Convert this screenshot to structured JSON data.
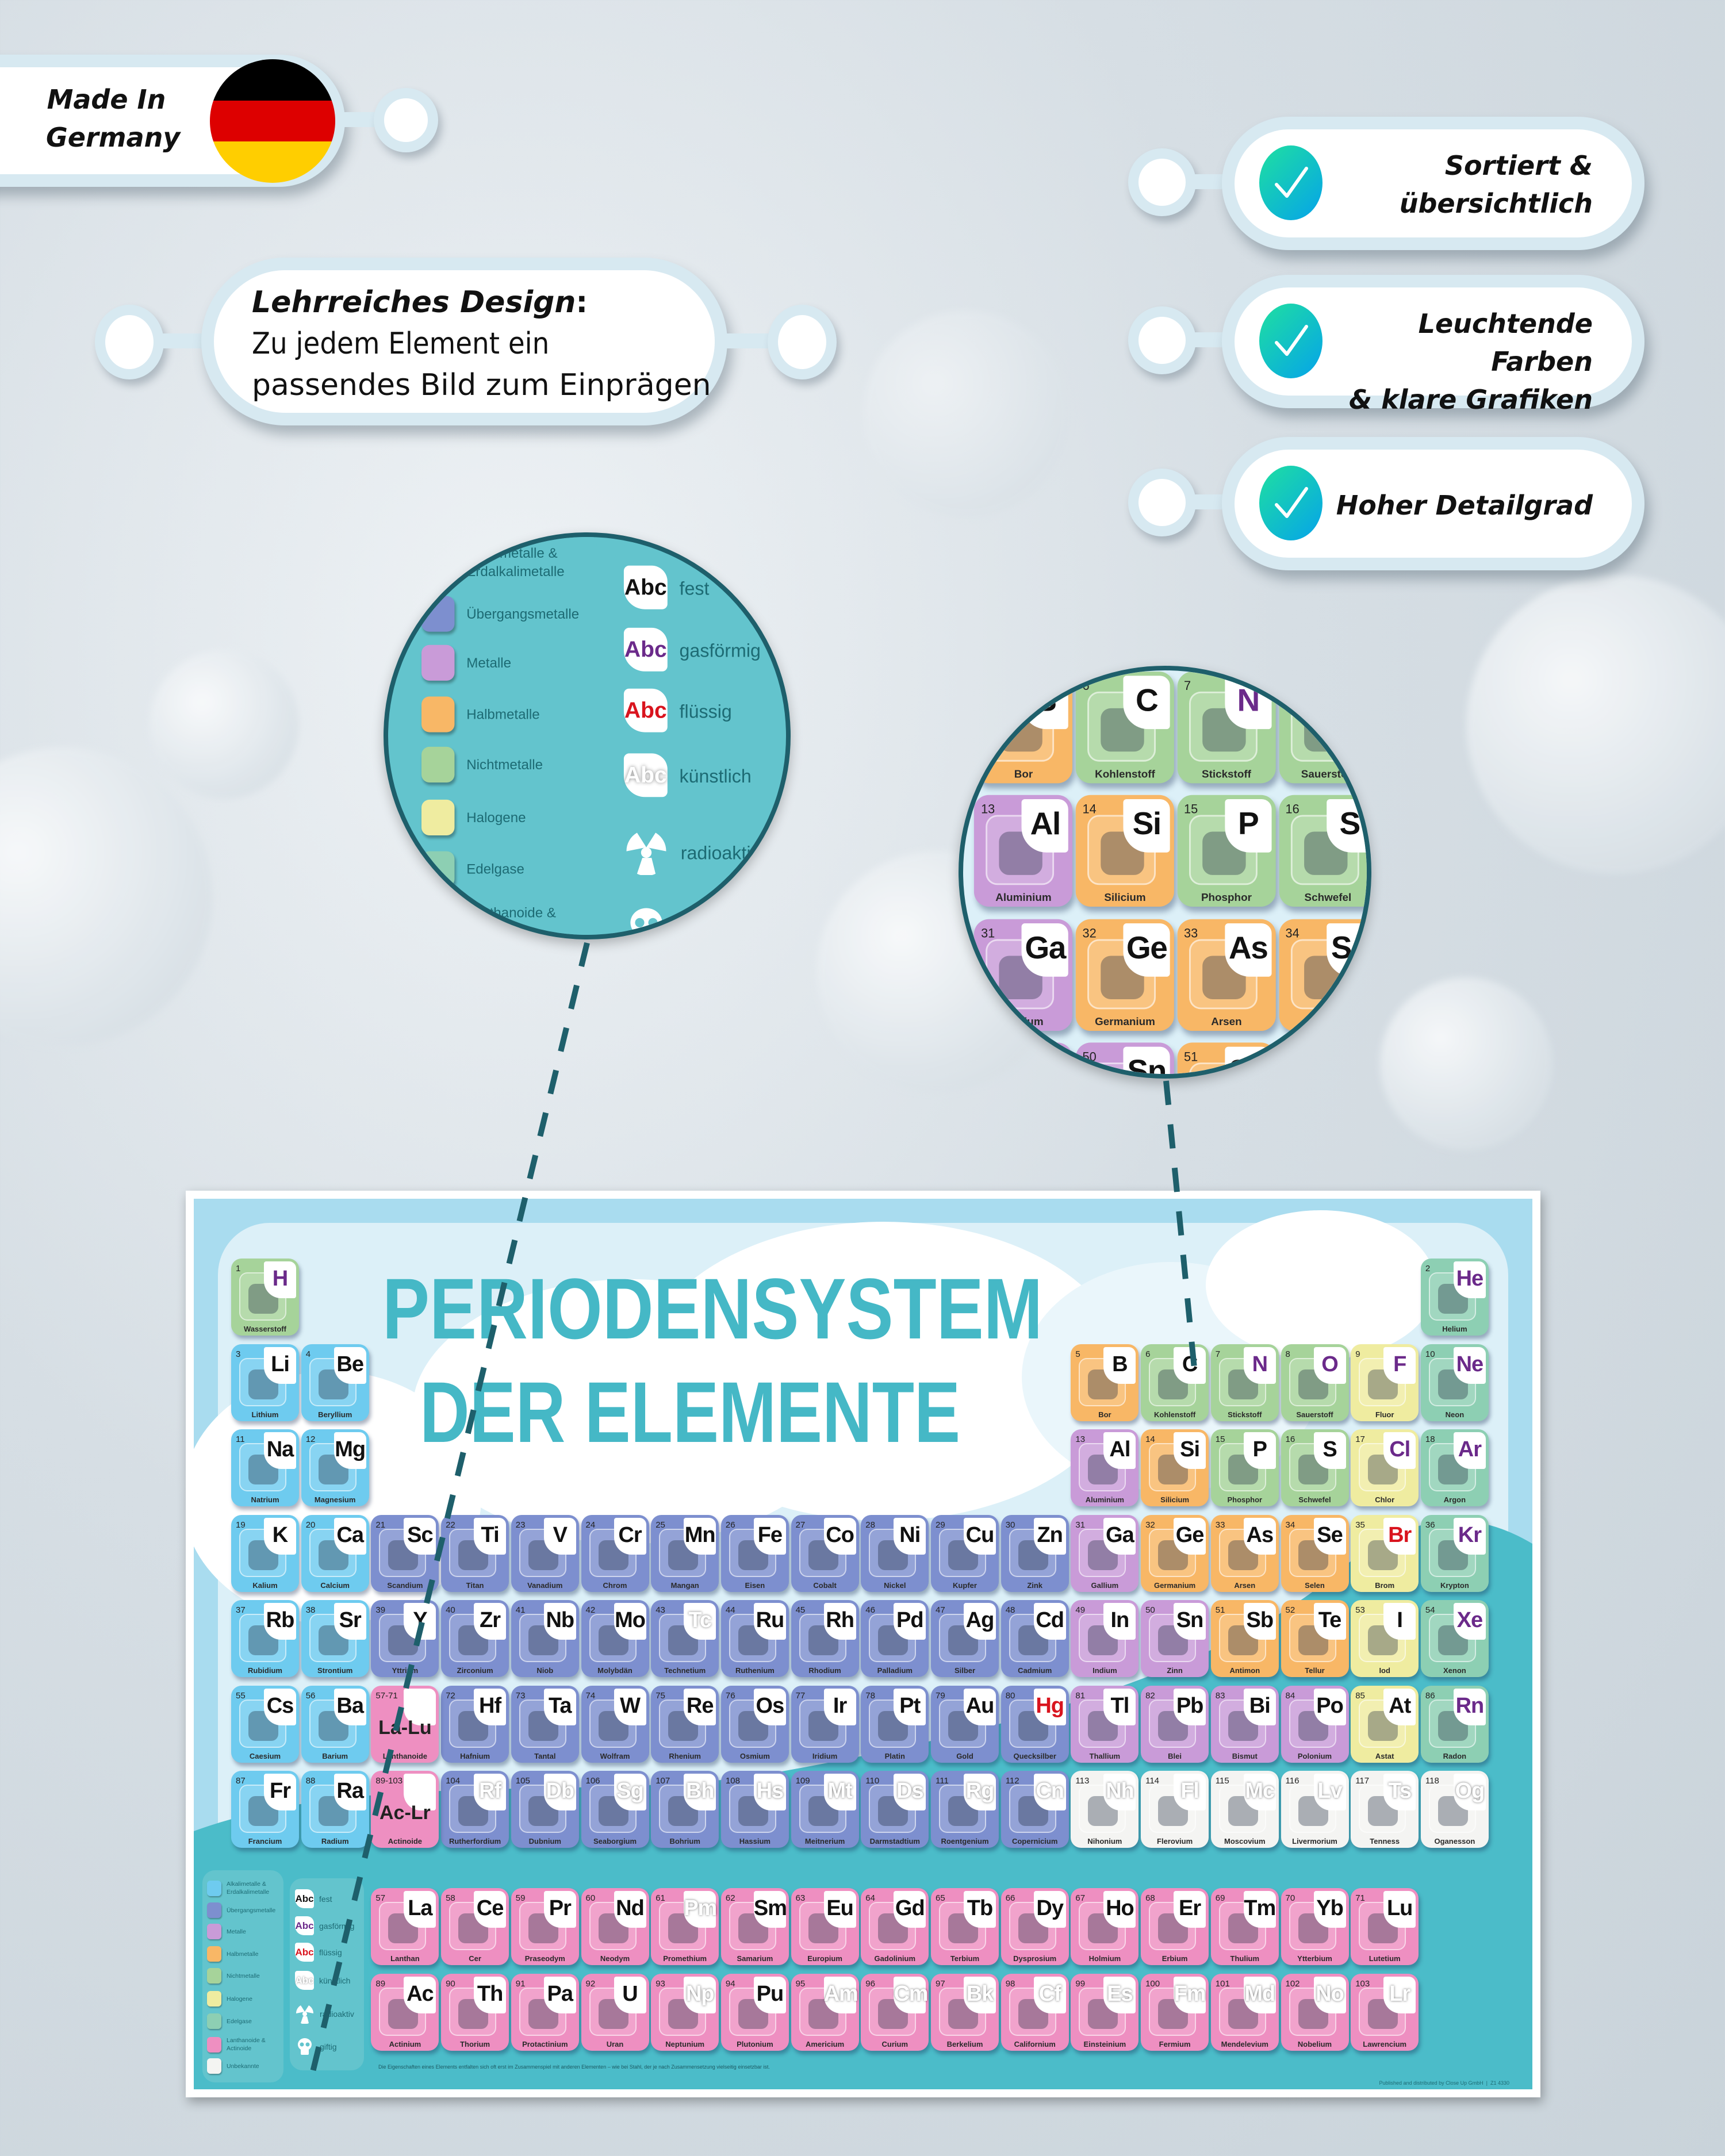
{
  "badge": {
    "made_in": "Made In",
    "country": "Germany",
    "flag_colors": [
      "#000000",
      "#dd0000",
      "#ffce00"
    ]
  },
  "design_callout": {
    "title": "Lehrreiches Design",
    "colon": ":",
    "line1": "Zu jedem Element ein",
    "line2": "passendes Bild zum Einprägen"
  },
  "features": [
    {
      "line1": "Sortiert &",
      "line2": "übersichtlich",
      "icon": "check-icon"
    },
    {
      "line1": "Leuchtende Farben",
      "line2": "& klare Grafiken",
      "icon": "check-icon"
    },
    {
      "line1": "Hoher Detailgrad",
      "line2": "",
      "icon": "check-icon"
    }
  ],
  "poster": {
    "title1": "PERIODENSYSTEM",
    "title2": "DER ELEMENTE",
    "note": "Die Eigenschaften eines Elements entfalten sich oft erst im Zusammenspiel mit anderen Elementen – wie bei Stahl, der je nach Zusammensetzung vielseitig einsetzbar ist.",
    "publisher": "Published and distributed by Close Up GmbH  |  Z1 4330",
    "title_color": "#45b8c6"
  },
  "legend": {
    "categories": [
      {
        "key": "alk",
        "label": "Alkalimetalle &\nErdalkalimetalle",
        "color": "#6ecbef"
      },
      {
        "key": "tm",
        "label": "Übergangsmetalle",
        "color": "#7d8fcf"
      },
      {
        "key": "met",
        "label": "Metalle",
        "color": "#c99bd8"
      },
      {
        "key": "half",
        "label": "Halbmetalle",
        "color": "#f8b766"
      },
      {
        "key": "non",
        "label": "Nichtmetalle",
        "color": "#a6d39a"
      },
      {
        "key": "hal",
        "label": "Halogene",
        "color": "#efeca0"
      },
      {
        "key": "nob",
        "label": "Edelgase",
        "color": "#8dcfb3"
      },
      {
        "key": "lan",
        "label": "Lanthanoide &\nActinoide",
        "color": "#ee8fc1"
      },
      {
        "key": "unk",
        "label": "Unbekannte",
        "color": "#f4f4f2"
      }
    ],
    "states": [
      {
        "key": "s",
        "icon_text": "Abc",
        "label": "fest",
        "color": "#111111"
      },
      {
        "key": "g",
        "icon_text": "Abc",
        "label": "gasförmig",
        "color": "#6b2a8a"
      },
      {
        "key": "l",
        "icon_text": "Abc",
        "label": "flüssig",
        "color": "#d9141e"
      },
      {
        "key": "a",
        "icon_text": "Abc",
        "label": "künstlich",
        "color": "#ffffff"
      }
    ],
    "symbols": [
      {
        "label": "radioaktiv",
        "icon": "radioactive-icon"
      },
      {
        "label": "giftig",
        "icon": "skull-icon"
      }
    ]
  },
  "placeholders": [
    {
      "range": "57-71",
      "symbol": "La-Lu",
      "name": "Lanthanoide"
    },
    {
      "range": "89-103",
      "symbol": "Ac-Lr",
      "name": "Actinoide"
    }
  ],
  "elements": [
    [
      1,
      "H",
      "Wasserstoff",
      "non",
      "g"
    ],
    [
      2,
      "He",
      "Helium",
      "nob",
      "g"
    ],
    [
      3,
      "Li",
      "Lithium",
      "alk",
      "s"
    ],
    [
      4,
      "Be",
      "Beryllium",
      "alk",
      "s"
    ],
    [
      5,
      "B",
      "Bor",
      "half",
      "s"
    ],
    [
      6,
      "C",
      "Kohlenstoff",
      "non",
      "s"
    ],
    [
      7,
      "N",
      "Stickstoff",
      "non",
      "g"
    ],
    [
      8,
      "O",
      "Sauerstoff",
      "non",
      "g"
    ],
    [
      9,
      "F",
      "Fluor",
      "hal",
      "g"
    ],
    [
      10,
      "Ne",
      "Neon",
      "nob",
      "g"
    ],
    [
      11,
      "Na",
      "Natrium",
      "alk",
      "s"
    ],
    [
      12,
      "Mg",
      "Magnesium",
      "alk",
      "s"
    ],
    [
      13,
      "Al",
      "Aluminium",
      "met",
      "s"
    ],
    [
      14,
      "Si",
      "Silicium",
      "half",
      "s"
    ],
    [
      15,
      "P",
      "Phosphor",
      "non",
      "s"
    ],
    [
      16,
      "S",
      "Schwefel",
      "non",
      "s"
    ],
    [
      17,
      "Cl",
      "Chlor",
      "hal",
      "g"
    ],
    [
      18,
      "Ar",
      "Argon",
      "nob",
      "g"
    ],
    [
      19,
      "K",
      "Kalium",
      "alk",
      "s"
    ],
    [
      20,
      "Ca",
      "Calcium",
      "alk",
      "s"
    ],
    [
      21,
      "Sc",
      "Scandium",
      "tm",
      "s"
    ],
    [
      22,
      "Ti",
      "Titan",
      "tm",
      "s"
    ],
    [
      23,
      "V",
      "Vanadium",
      "tm",
      "s"
    ],
    [
      24,
      "Cr",
      "Chrom",
      "tm",
      "s"
    ],
    [
      25,
      "Mn",
      "Mangan",
      "tm",
      "s"
    ],
    [
      26,
      "Fe",
      "Eisen",
      "tm",
      "s"
    ],
    [
      27,
      "Co",
      "Cobalt",
      "tm",
      "s"
    ],
    [
      28,
      "Ni",
      "Nickel",
      "tm",
      "s"
    ],
    [
      29,
      "Cu",
      "Kupfer",
      "tm",
      "s"
    ],
    [
      30,
      "Zn",
      "Zink",
      "tm",
      "s"
    ],
    [
      31,
      "Ga",
      "Gallium",
      "met",
      "s"
    ],
    [
      32,
      "Ge",
      "Germanium",
      "half",
      "s"
    ],
    [
      33,
      "As",
      "Arsen",
      "half",
      "s"
    ],
    [
      34,
      "Se",
      "Selen",
      "half",
      "s"
    ],
    [
      35,
      "Br",
      "Brom",
      "hal",
      "l"
    ],
    [
      36,
      "Kr",
      "Krypton",
      "nob",
      "g"
    ],
    [
      37,
      "Rb",
      "Rubidium",
      "alk",
      "s"
    ],
    [
      38,
      "Sr",
      "Strontium",
      "alk",
      "s"
    ],
    [
      39,
      "Y",
      "Yttrium",
      "tm",
      "s"
    ],
    [
      40,
      "Zr",
      "Zirconium",
      "tm",
      "s"
    ],
    [
      41,
      "Nb",
      "Niob",
      "tm",
      "s"
    ],
    [
      42,
      "Mo",
      "Molybdän",
      "tm",
      "s"
    ],
    [
      43,
      "Tc",
      "Technetium",
      "tm",
      "a"
    ],
    [
      44,
      "Ru",
      "Ruthenium",
      "tm",
      "s"
    ],
    [
      45,
      "Rh",
      "Rhodium",
      "tm",
      "s"
    ],
    [
      46,
      "Pd",
      "Palladium",
      "tm",
      "s"
    ],
    [
      47,
      "Ag",
      "Silber",
      "tm",
      "s"
    ],
    [
      48,
      "Cd",
      "Cadmium",
      "tm",
      "s"
    ],
    [
      49,
      "In",
      "Indium",
      "met",
      "s"
    ],
    [
      50,
      "Sn",
      "Zinn",
      "met",
      "s"
    ],
    [
      51,
      "Sb",
      "Antimon",
      "half",
      "s"
    ],
    [
      52,
      "Te",
      "Tellur",
      "half",
      "s"
    ],
    [
      53,
      "I",
      "Iod",
      "hal",
      "s"
    ],
    [
      54,
      "Xe",
      "Xenon",
      "nob",
      "g"
    ],
    [
      55,
      "Cs",
      "Caesium",
      "alk",
      "s"
    ],
    [
      56,
      "Ba",
      "Barium",
      "alk",
      "s"
    ],
    [
      57,
      "La",
      "Lanthan",
      "lan",
      "s"
    ],
    [
      58,
      "Ce",
      "Cer",
      "lan",
      "s"
    ],
    [
      59,
      "Pr",
      "Praseodym",
      "lan",
      "s"
    ],
    [
      60,
      "Nd",
      "Neodym",
      "lan",
      "s"
    ],
    [
      61,
      "Pm",
      "Promethium",
      "lan",
      "a"
    ],
    [
      62,
      "Sm",
      "Samarium",
      "lan",
      "s"
    ],
    [
      63,
      "Eu",
      "Europium",
      "lan",
      "s"
    ],
    [
      64,
      "Gd",
      "Gadolinium",
      "lan",
      "s"
    ],
    [
      65,
      "Tb",
      "Terbium",
      "lan",
      "s"
    ],
    [
      66,
      "Dy",
      "Dysprosium",
      "lan",
      "s"
    ],
    [
      67,
      "Ho",
      "Holmium",
      "lan",
      "s"
    ],
    [
      68,
      "Er",
      "Erbium",
      "lan",
      "s"
    ],
    [
      69,
      "Tm",
      "Thulium",
      "lan",
      "s"
    ],
    [
      70,
      "Yb",
      "Ytterbium",
      "lan",
      "s"
    ],
    [
      71,
      "Lu",
      "Lutetium",
      "lan",
      "s"
    ],
    [
      72,
      "Hf",
      "Hafnium",
      "tm",
      "s"
    ],
    [
      73,
      "Ta",
      "Tantal",
      "tm",
      "s"
    ],
    [
      74,
      "W",
      "Wolfram",
      "tm",
      "s"
    ],
    [
      75,
      "Re",
      "Rhenium",
      "tm",
      "s"
    ],
    [
      76,
      "Os",
      "Osmium",
      "tm",
      "s"
    ],
    [
      77,
      "Ir",
      "Iridium",
      "tm",
      "s"
    ],
    [
      78,
      "Pt",
      "Platin",
      "tm",
      "s"
    ],
    [
      79,
      "Au",
      "Gold",
      "tm",
      "s"
    ],
    [
      80,
      "Hg",
      "Quecksilber",
      "tm",
      "l"
    ],
    [
      81,
      "Tl",
      "Thallium",
      "met",
      "s"
    ],
    [
      82,
      "Pb",
      "Blei",
      "met",
      "s"
    ],
    [
      83,
      "Bi",
      "Bismut",
      "met",
      "s"
    ],
    [
      84,
      "Po",
      "Polonium",
      "met",
      "s"
    ],
    [
      85,
      "At",
      "Astat",
      "hal",
      "s"
    ],
    [
      86,
      "Rn",
      "Radon",
      "nob",
      "g"
    ],
    [
      87,
      "Fr",
      "Francium",
      "alk",
      "s"
    ],
    [
      88,
      "Ra",
      "Radium",
      "alk",
      "s"
    ],
    [
      89,
      "Ac",
      "Actinium",
      "lan",
      "s"
    ],
    [
      90,
      "Th",
      "Thorium",
      "lan",
      "s"
    ],
    [
      91,
      "Pa",
      "Protactinium",
      "lan",
      "s"
    ],
    [
      92,
      "U",
      "Uran",
      "lan",
      "s"
    ],
    [
      93,
      "Np",
      "Neptunium",
      "lan",
      "a"
    ],
    [
      94,
      "Pu",
      "Plutonium",
      "lan",
      "s"
    ],
    [
      95,
      "Am",
      "Americium",
      "lan",
      "a"
    ],
    [
      96,
      "Cm",
      "Curium",
      "lan",
      "a"
    ],
    [
      97,
      "Bk",
      "Berkelium",
      "lan",
      "a"
    ],
    [
      98,
      "Cf",
      "Californium",
      "lan",
      "a"
    ],
    [
      99,
      "Es",
      "Einsteinium",
      "lan",
      "a"
    ],
    [
      100,
      "Fm",
      "Fermium",
      "lan",
      "a"
    ],
    [
      101,
      "Md",
      "Mendelevium",
      "lan",
      "a"
    ],
    [
      102,
      "No",
      "Nobelium",
      "lan",
      "a"
    ],
    [
      103,
      "Lr",
      "Lawrencium",
      "lan",
      "a"
    ],
    [
      104,
      "Rf",
      "Rutherfordium",
      "tm",
      "a"
    ],
    [
      105,
      "Db",
      "Dubnium",
      "tm",
      "a"
    ],
    [
      106,
      "Sg",
      "Seaborgium",
      "tm",
      "a"
    ],
    [
      107,
      "Bh",
      "Bohrium",
      "tm",
      "a"
    ],
    [
      108,
      "Hs",
      "Hassium",
      "tm",
      "a"
    ],
    [
      109,
      "Mt",
      "Meitnerium",
      "tm",
      "a"
    ],
    [
      110,
      "Ds",
      "Darmstadtium",
      "tm",
      "a"
    ],
    [
      111,
      "Rg",
      "Roentgenium",
      "tm",
      "a"
    ],
    [
      112,
      "Cn",
      "Copernicium",
      "tm",
      "a"
    ],
    [
      113,
      "Nh",
      "Nihonium",
      "unk",
      "a"
    ],
    [
      114,
      "Fl",
      "Flerovium",
      "unk",
      "a"
    ],
    [
      115,
      "Mc",
      "Moscovium",
      "unk",
      "a"
    ],
    [
      116,
      "Lv",
      "Livermorium",
      "unk",
      "a"
    ],
    [
      117,
      "Ts",
      "Tenness",
      "unk",
      "a"
    ],
    [
      118,
      "Og",
      "Oganesson",
      "unk",
      "a"
    ]
  ]
}
